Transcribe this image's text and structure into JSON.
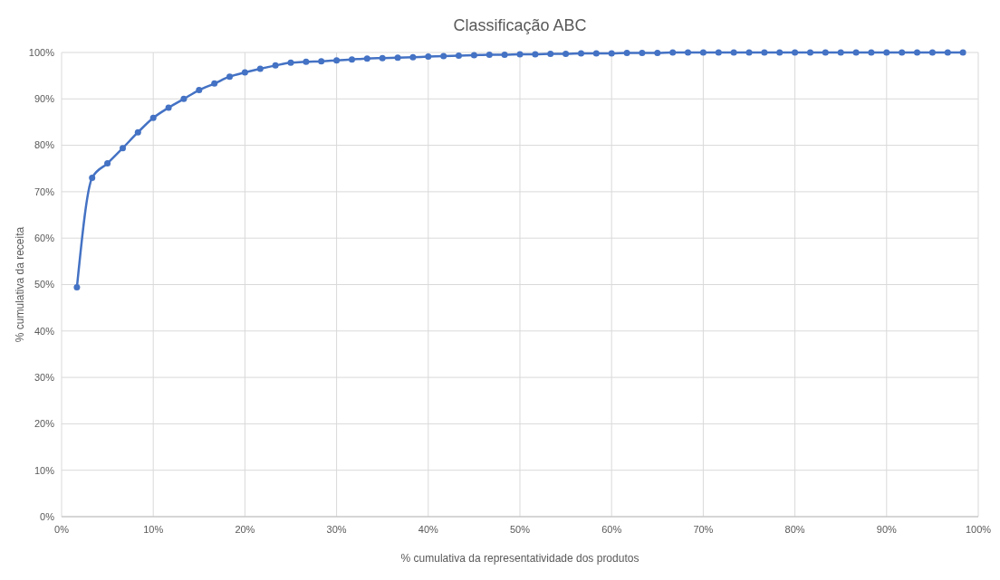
{
  "chart_data": {
    "type": "line",
    "title": "Classificação ABC",
    "xlabel": "% cumulativa da representatividade dos produtos",
    "ylabel": "% cumulativa da receita",
    "x": [
      1.67,
      3.33,
      5,
      6.67,
      8.33,
      10,
      11.67,
      13.33,
      15,
      16.67,
      18.33,
      20,
      21.67,
      23.33,
      25,
      26.67,
      28.33,
      30,
      31.67,
      33.33,
      35,
      36.67,
      38.33,
      40,
      41.67,
      43.33,
      45,
      46.67,
      48.33,
      50,
      51.67,
      53.33,
      55,
      56.67,
      58.33,
      60,
      61.67,
      63.33,
      65,
      66.67,
      68.33,
      70,
      71.67,
      73.33,
      75,
      76.67,
      78.33,
      80,
      81.67,
      83.33,
      85,
      86.67,
      88.33,
      90,
      91.67,
      93.33,
      95,
      96.67,
      98.33
    ],
    "series": [
      {
        "color": "#4472c4",
        "values": [
          49.4,
          73.0,
          76.1,
          79.4,
          82.8,
          85.9,
          88.1,
          90.0,
          91.9,
          93.3,
          94.8,
          95.7,
          96.5,
          97.2,
          97.8,
          98.0,
          98.1,
          98.3,
          98.5,
          98.7,
          98.8,
          98.9,
          99.0,
          99.1,
          99.2,
          99.3,
          99.4,
          99.5,
          99.5,
          99.6,
          99.6,
          99.7,
          99.7,
          99.8,
          99.8,
          99.8,
          99.9,
          99.9,
          99.9,
          100,
          100,
          100,
          100,
          100,
          100,
          100,
          100,
          100,
          100,
          100,
          100,
          100,
          100,
          100,
          100,
          100,
          100,
          100,
          100
        ]
      }
    ],
    "xlim": [
      0,
      100
    ],
    "ylim": [
      0,
      100
    ],
    "xticks": [
      {
        "value": 0,
        "label": "0%"
      },
      {
        "value": 10,
        "label": "10%"
      },
      {
        "value": 20,
        "label": "20%"
      },
      {
        "value": 30,
        "label": "30%"
      },
      {
        "value": 40,
        "label": "40%"
      },
      {
        "value": 50,
        "label": "50%"
      },
      {
        "value": 60,
        "label": "60%"
      },
      {
        "value": 70,
        "label": "70%"
      },
      {
        "value": 80,
        "label": "80%"
      },
      {
        "value": 90,
        "label": "90%"
      },
      {
        "value": 100,
        "label": "100%"
      }
    ],
    "yticks": [
      {
        "value": 0,
        "label": "0%"
      },
      {
        "value": 10,
        "label": "10%"
      },
      {
        "value": 20,
        "label": "20%"
      },
      {
        "value": 30,
        "label": "30%"
      },
      {
        "value": 40,
        "label": "40%"
      },
      {
        "value": 50,
        "label": "50%"
      },
      {
        "value": 60,
        "label": "60%"
      },
      {
        "value": 70,
        "label": "70%"
      },
      {
        "value": 80,
        "label": "80%"
      },
      {
        "value": 90,
        "label": "90%"
      },
      {
        "value": 100,
        "label": "100%"
      }
    ],
    "grid": true,
    "marker": "circle",
    "line_style": "solid"
  }
}
